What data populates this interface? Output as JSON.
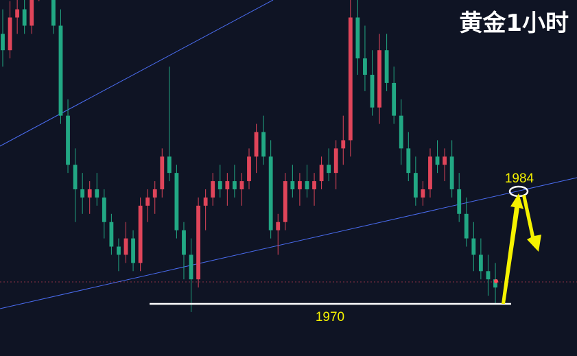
{
  "title": "黄金1小时",
  "colors": {
    "background": "#0f1424",
    "up": "#e0455a",
    "down": "#22a884",
    "trendline": "#4a6cf0",
    "support": "#ffffff",
    "annotation": "#f5f200",
    "title": "#ffffff",
    "price_marker": "#ff4a5a"
  },
  "chart_data": {
    "type": "candlestick",
    "title": "黄金1小时",
    "support_level": 1970,
    "target_level": 1984,
    "current_price": 1972,
    "ylim": [
      1963,
      2027
    ],
    "candles": [
      [
        2003,
        2006,
        1999,
        2001
      ],
      [
        2001,
        2007,
        2000,
        2005
      ],
      [
        2005,
        2009,
        2003,
        2006
      ],
      [
        2006,
        2008,
        2003,
        2004
      ],
      [
        2004,
        2011,
        2003,
        2010
      ],
      [
        2010,
        2016,
        2007,
        2014
      ],
      [
        2014,
        2021,
        2011,
        2012
      ],
      [
        2012,
        2015,
        2003,
        2004
      ],
      [
        2004,
        2006,
        1992,
        1993
      ],
      [
        1993,
        1995,
        1986,
        1987
      ],
      [
        1987,
        1989,
        1980,
        1984
      ],
      [
        1984,
        1986,
        1981,
        1983
      ],
      [
        1983,
        1985,
        1981,
        1984
      ],
      [
        1984,
        1986,
        1982,
        1983
      ],
      [
        1983,
        1984,
        1978,
        1980
      ],
      [
        1980,
        1981,
        1976,
        1977
      ],
      [
        1977,
        1978,
        1974,
        1976
      ],
      [
        1976,
        1980,
        1975,
        1978
      ],
      [
        1978,
        1979,
        1974,
        1975
      ],
      [
        1975,
        1983,
        1974,
        1982
      ],
      [
        1982,
        1984,
        1980,
        1983
      ],
      [
        1983,
        1985,
        1981,
        1984
      ],
      [
        1984,
        1989,
        1983,
        1988
      ],
      [
        1988,
        1999,
        1985,
        1986
      ],
      [
        1986,
        1987,
        1978,
        1979
      ],
      [
        1979,
        1980,
        1973,
        1976
      ],
      [
        1976,
        1978,
        1969,
        1973
      ],
      [
        1973,
        1983,
        1972,
        1982
      ],
      [
        1982,
        1984,
        1979,
        1983
      ],
      [
        1983,
        1986,
        1982,
        1985
      ],
      [
        1985,
        1987,
        1983,
        1984
      ],
      [
        1984,
        1986,
        1982,
        1985
      ],
      [
        1985,
        1987,
        1983,
        1984
      ],
      [
        1984,
        1986,
        1982,
        1985
      ],
      [
        1985,
        1989,
        1984,
        1988
      ],
      [
        1988,
        1992,
        1986,
        1991
      ],
      [
        1991,
        1993,
        1987,
        1988
      ],
      [
        1988,
        1990,
        1978,
        1979
      ],
      [
        1979,
        1981,
        1976,
        1980
      ],
      [
        1980,
        1986,
        1979,
        1985
      ],
      [
        1985,
        1987,
        1983,
        1984
      ],
      [
        1984,
        1986,
        1982,
        1985
      ],
      [
        1985,
        1987,
        1983,
        1984
      ],
      [
        1984,
        1986,
        1982,
        1985
      ],
      [
        1985,
        1988,
        1984,
        1987
      ],
      [
        1987,
        1989,
        1985,
        1986
      ],
      [
        1986,
        1990,
        1984,
        1989
      ],
      [
        1989,
        1993,
        1987,
        1990
      ],
      [
        1990,
        2009,
        1988,
        2005
      ],
      [
        2005,
        2014,
        1998,
        2000
      ],
      [
        2000,
        2004,
        1996,
        1998
      ],
      [
        1998,
        2001,
        1993,
        1994
      ],
      [
        1994,
        2003,
        1992,
        2001
      ],
      [
        2001,
        2003,
        1996,
        1997
      ],
      [
        1997,
        1999,
        1992,
        1993
      ],
      [
        1993,
        1995,
        1987,
        1989
      ],
      [
        1989,
        1991,
        1985,
        1986
      ],
      [
        1986,
        1988,
        1982,
        1983
      ],
      [
        1983,
        1985,
        1982,
        1984
      ],
      [
        1984,
        1989,
        1983,
        1988
      ],
      [
        1988,
        1990,
        1986,
        1987
      ],
      [
        1987,
        1989,
        1985,
        1988
      ],
      [
        1988,
        1990,
        1983,
        1984
      ],
      [
        1984,
        1986,
        1980,
        1981
      ],
      [
        1981,
        1983,
        1977,
        1978
      ],
      [
        1978,
        1980,
        1974,
        1976
      ],
      [
        1976,
        1978,
        1973,
        1974
      ],
      [
        1974,
        1976,
        1971,
        1973
      ],
      [
        1973,
        1975,
        1970,
        1972
      ]
    ]
  },
  "annotations": {
    "target_label": "1984",
    "support_label": "1970"
  }
}
